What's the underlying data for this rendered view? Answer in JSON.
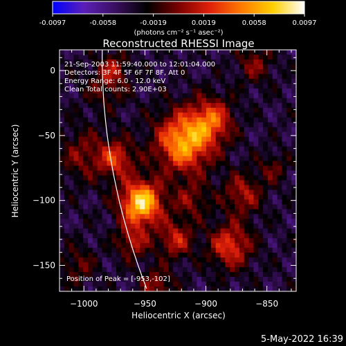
{
  "colorbar": {
    "ticks": [
      "-0.0097",
      "-0.0058",
      "-0.0019",
      "0.0019",
      "0.0058",
      "0.0097"
    ],
    "min": -0.0097,
    "max": 0.0097,
    "stops": [
      "#0000ff",
      "#5b1fb8",
      "#3a0f5f",
      "#000000",
      "#7a0000",
      "#e0200a",
      "#ff7a00",
      "#ffd000",
      "#ffffff"
    ]
  },
  "chart_data": {
    "type": "heatmap",
    "title": "Reconstructed RHESSI Image",
    "colorbar_label": "(photons cm⁻² s⁻¹ asec⁻²)",
    "xlabel": "Heliocentric X (arcsec)",
    "ylabel": "Heliocentric Y (arcsec)",
    "xlim": [
      -1020,
      -826
    ],
    "ylim": [
      -170,
      16
    ],
    "xticks": [
      {
        "value": -1000,
        "label": "−1000"
      },
      {
        "value": -950,
        "label": "−950"
      },
      {
        "value": -900,
        "label": "−900"
      },
      {
        "value": -850,
        "label": "−850"
      }
    ],
    "yticks": [
      {
        "value": 0,
        "label": "0"
      },
      {
        "value": -50,
        "label": "−50"
      },
      {
        "value": -100,
        "label": "−100"
      },
      {
        "value": -150,
        "label": "−150"
      }
    ],
    "annotations": [
      "21-Sep-2003 11:59:40.000 to 12:01:04.000",
      "Detectors: 3F 4F 5F 6F 7F 8F, Att 0",
      "Energy Range: 6.0 - 12.0 keV",
      "Clean    Total counts: 2.90E+03"
    ],
    "peak_label": "Position of Peak = [-953,-102]",
    "peak": [
      -953,
      -102
    ],
    "blobs": [
      [
        -953,
        -102,
        12,
        1.0
      ],
      [
        -918,
        -55,
        16,
        0.85
      ],
      [
        -973,
        -68,
        10,
        0.5
      ],
      [
        -895,
        -38,
        12,
        0.55
      ],
      [
        -1000,
        -65,
        14,
        0.3
      ],
      [
        -982,
        -12,
        12,
        0.25
      ],
      [
        -925,
        -130,
        10,
        0.45
      ],
      [
        -880,
        -135,
        12,
        0.55
      ],
      [
        -960,
        -132,
        9,
        0.4
      ],
      [
        -940,
        -165,
        9,
        0.35
      ],
      [
        -870,
        -95,
        11,
        0.4
      ],
      [
        -845,
        -75,
        8,
        0.25
      ],
      [
        -1005,
        -150,
        10,
        0.25
      ],
      [
        -912,
        -100,
        10,
        0.3
      ],
      [
        -975,
        2,
        8,
        0.3
      ],
      [
        -860,
        5,
        10,
        0.3
      ]
    ]
  },
  "timestamp": "5-May-2022 16:39"
}
